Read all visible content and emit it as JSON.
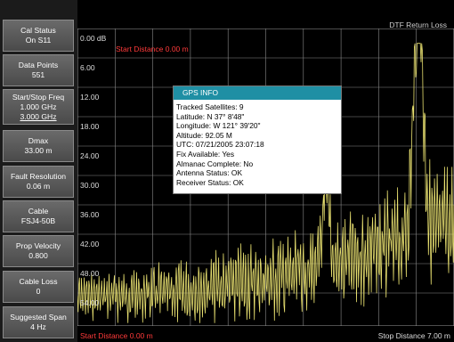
{
  "softkeys": [
    {
      "lines": [
        "Cal Status",
        "On S11"
      ]
    },
    {
      "lines": [
        "Data Points",
        "551"
      ]
    },
    {
      "lines": [
        "Start/Stop Freq",
        "1.000 GHz",
        "3.000 GHz"
      ]
    },
    {
      "lines": [
        "Dmax",
        "33.00 m"
      ]
    },
    {
      "lines": [
        "Fault Resolution",
        "0.06 m"
      ]
    },
    {
      "lines": [
        "Cable",
        "FSJ4-50B"
      ]
    },
    {
      "lines": [
        "Prop Velocity",
        "0.800"
      ]
    },
    {
      "lines": [
        "Cable Loss",
        "0"
      ]
    },
    {
      "lines": [
        "Suggested Span",
        "4 Hz"
      ]
    }
  ],
  "plot": {
    "title": "DTF Return Loss",
    "start_distance_marker": "Start Distance 0.00 m",
    "start_distance": "Start Distance 0.00 m",
    "stop_distance": "Stop Distance 7.00 m",
    "y_labels": [
      "0.00 dB",
      "6.00",
      "12.00",
      "18.00",
      "24.00",
      "30.00",
      "36.00",
      "42.00",
      "48.00",
      "54.00"
    ],
    "trace_color": "#e8e070",
    "grid_color": "#8a8a8a"
  },
  "gps": {
    "title": "GPS INFO",
    "rows": [
      "Tracked Satellites: 9",
      "Latitude: N 37° 8'48\"",
      "Longitude: W 121° 39'20\"",
      "Altitude: 92.05 M",
      "UTC: 07/21/2005 23:07:18",
      "Fix Available: Yes",
      "Almanac Complete: No",
      "Antenna Status: OK",
      "Receiver Status: OK"
    ]
  }
}
